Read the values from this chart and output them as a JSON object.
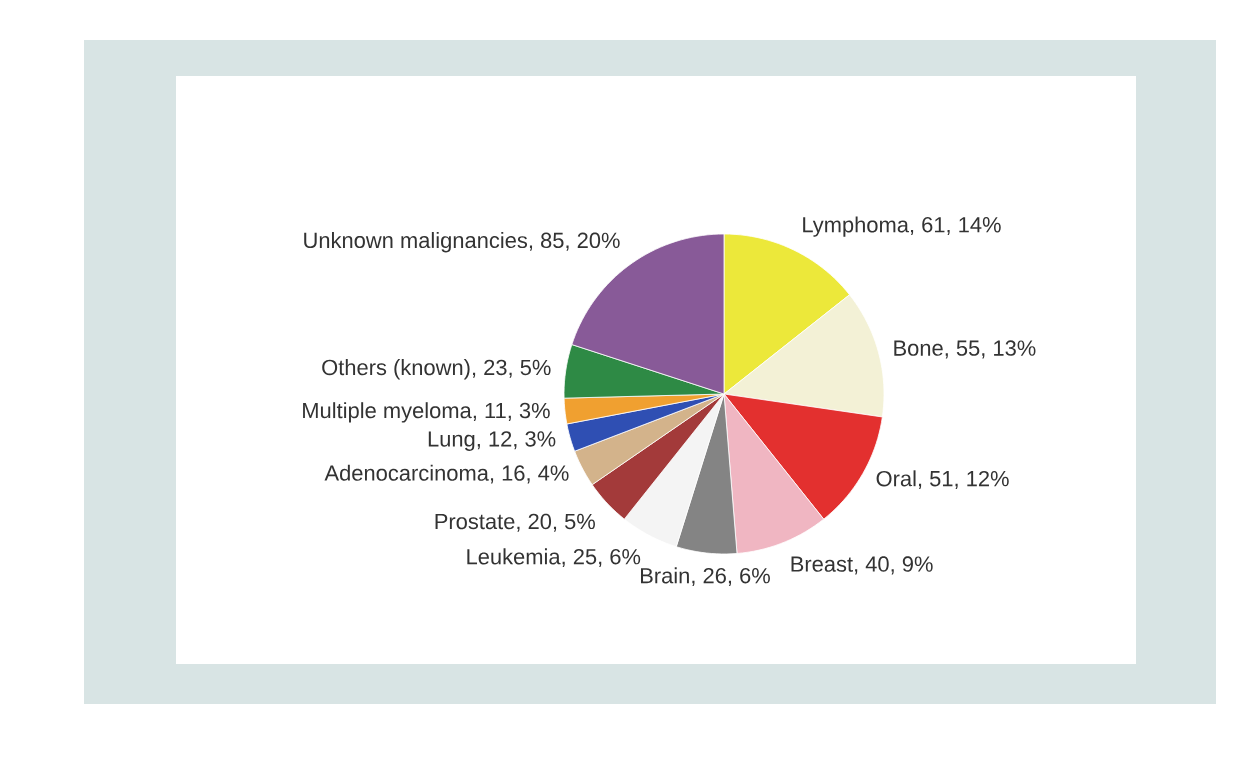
{
  "chart_data": {
    "type": "pie",
    "categories": [
      "Lymphoma",
      "Bone",
      "Oral",
      "Breast",
      "Brain",
      "Leukemia",
      "Prostate",
      "Adenocarcinoma",
      "Lung",
      "Multiple myeloma",
      "Others (known)",
      "Unknown malignancies"
    ],
    "values": [
      61,
      55,
      51,
      40,
      26,
      25,
      20,
      16,
      12,
      11,
      23,
      85
    ],
    "value_labels": [
      ", 61, 14%",
      ", 55, 13%",
      ", 51, 12%",
      ", 40, 9%",
      ", 26, 6%",
      ", 25, 6%",
      ", 20, 5%",
      ", 16, 4%",
      ", 12, 3%",
      ", 11, 3%",
      ", 23, 5%",
      ", 85, 20%"
    ],
    "colors": [
      "#ece83a",
      "#f3f1d6",
      "#e3302f",
      "#f0b6c2",
      "#848484",
      "#f4f4f4",
      "#a33a3a",
      "#d3b38b",
      "#2f4fb3",
      "#f0a030",
      "#2e8a45",
      "#885a98"
    ]
  }
}
